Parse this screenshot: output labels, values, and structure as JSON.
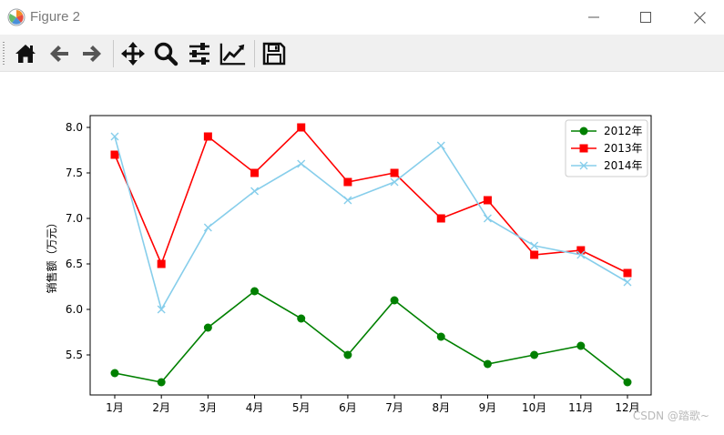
{
  "window": {
    "title": "Figure 2"
  },
  "toolbar": {
    "buttons": [
      {
        "name": "home-icon"
      },
      {
        "name": "back-arrow-icon"
      },
      {
        "name": "forward-arrow-icon"
      },
      {
        "name": "pan-move-icon"
      },
      {
        "name": "zoom-magnifier-icon"
      },
      {
        "name": "subplots-sliders-icon"
      },
      {
        "name": "edit-axis-chart-icon"
      },
      {
        "name": "save-floppy-icon"
      }
    ]
  },
  "watermark": "CSDN @踏歌~",
  "chart_data": {
    "type": "line",
    "title": "",
    "xlabel": "",
    "ylabel": "销售额（万元）",
    "categories": [
      "1月",
      "2月",
      "3月",
      "4月",
      "5月",
      "6月",
      "7月",
      "8月",
      "9月",
      "10月",
      "11月",
      "12月"
    ],
    "yticks": [
      "5.5",
      "6.0",
      "6.5",
      "7.0",
      "7.5",
      "8.0"
    ],
    "ylim": [
      5.1,
      8.15
    ],
    "legend_position": "top-right",
    "grid": false,
    "series": [
      {
        "name": "2012年",
        "color": "#008000",
        "marker": "circle",
        "values": [
          5.3,
          5.2,
          5.8,
          6.2,
          5.9,
          5.5,
          6.1,
          5.7,
          5.4,
          5.5,
          5.6,
          5.2
        ]
      },
      {
        "name": "2013年",
        "color": "#ff0000",
        "marker": "square",
        "values": [
          7.7,
          6.5,
          7.9,
          7.5,
          8.0,
          7.4,
          7.5,
          7.0,
          7.2,
          6.6,
          6.65,
          6.4
        ]
      },
      {
        "name": "2014年",
        "color": "#87ceeb",
        "marker": "x",
        "values": [
          7.9,
          6.0,
          6.9,
          7.3,
          7.6,
          7.2,
          7.4,
          7.8,
          7.0,
          6.7,
          6.6,
          6.3
        ]
      }
    ]
  }
}
